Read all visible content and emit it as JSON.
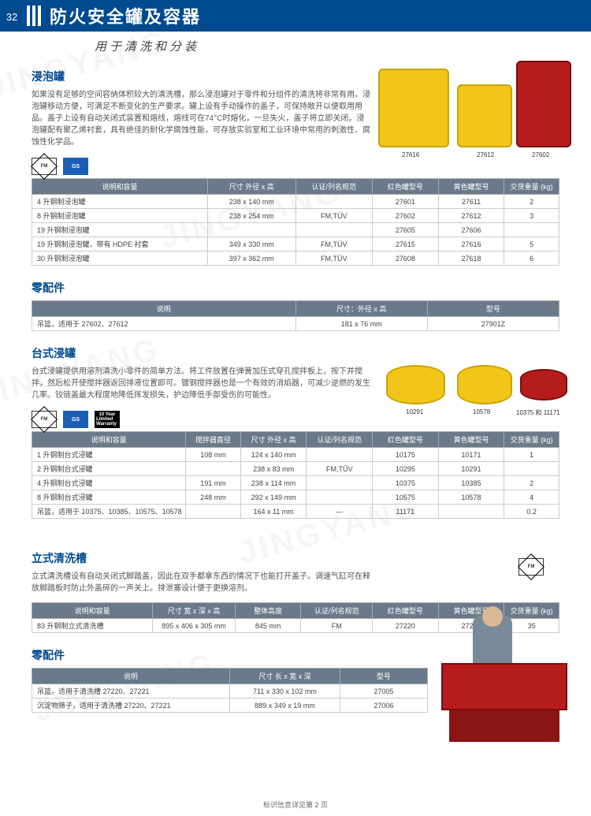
{
  "page_number": "32",
  "header_title": "防火安全罐及容器",
  "subtitle": "用于清洗和分装",
  "footer_note": "标识信息详见第 2 页",
  "watermark_text": "JINGYANG",
  "colors": {
    "header_bg": "#004a8f",
    "th_bg": "#6a7a8a",
    "yellow_tank": "#f2c618",
    "red_tank": "#b71c1c"
  },
  "section1": {
    "title": "浸泡罐",
    "desc": "如果没有足够的空间容纳体积较大的清洗槽，那么浸泡罐对于零件和分组件的清洗将非常有用。浸泡罐移动方便，可满足不断变化的生产要求。罐上设有手动操作的盖子，可保持敞开以便取用用品。盖子上设有自动关闭式装置和熔线，熔线可在74°C时熔化，一旦失火，盖子将立即关闭。浸泡罐配有聚乙烯衬套，具有绝佳的耐化学腐蚀性能，可存放实验室和工业环境中常用的刺激性、腐蚀性化学品。",
    "labels": {
      "l1": "27616",
      "l2": "27612",
      "l3": "27602"
    },
    "table": {
      "headers": [
        "说明和容量",
        "尺寸\n外径 x 高",
        "认证/列名规范",
        "红色罐型号",
        "黄色罐型号",
        "交货重量\n(kg)"
      ],
      "rows": [
        [
          "4 升钢制浸泡罐",
          "238 x 140 mm",
          "",
          "27601",
          "27611",
          "2"
        ],
        [
          "8 升钢制浸泡罐",
          "238 x 254 mm",
          "FM,TÜV",
          "27602",
          "27612",
          "3"
        ],
        [
          "19 升钢制浸泡罐",
          "",
          "",
          "27605",
          "27606",
          ""
        ],
        [
          "19 升钢制浸泡罐，带有 HDPE 衬套",
          "349 x 330 mm",
          "FM,TÜV",
          "27615",
          "27616",
          "5"
        ],
        [
          "30 升钢制浸泡罐",
          "397 x 362 mm",
          "FM,TÜV",
          "27608",
          "27618",
          "6"
        ]
      ]
    }
  },
  "section1_acc": {
    "title": "零配件",
    "headers": [
      "说明",
      "尺寸：外径 x 高",
      "型号"
    ],
    "row": [
      "吊篮，适用于 27602、27612",
      "181 x 76 mm",
      "27901Z"
    ]
  },
  "section2": {
    "title": "台式浸罐",
    "desc": "台式浸罐提供用溶剂清洗小零件的简单方法。将工件放置在弹簧加压式穿孔搅拌板上，按下并搅拌，然后松开使搅拌器返回排液位置即可。镀钢搅拌器也是一个有效的消焰器，可减少逆燃的发生几率。铰链盖最大程度地降低挥发损失，护边降低手部受伤的可能性。",
    "labels": {
      "l1": "10291",
      "l2": "10578",
      "l3": "10375 和 11171"
    },
    "table": {
      "headers": [
        "说明和容量",
        "搅拌器直径",
        "尺寸\n外径 x 高",
        "认证/列名规范",
        "红色罐型号",
        "黄色罐型号",
        "交货重量\n(kg)"
      ],
      "rows": [
        [
          "1 升钢制台式浸罐",
          "108 mm",
          "124 x 140 mm",
          "",
          "10175",
          "10171",
          "1"
        ],
        [
          "2 升钢制台式浸罐",
          "",
          "238 x 83 mm",
          "FM,TÜV",
          "10295",
          "10291",
          ""
        ],
        [
          "4 升钢制台式浸罐",
          "191 mm",
          "238 x 114 mm",
          "",
          "10375",
          "10385",
          "2"
        ],
        [
          "8 升钢制台式浸罐",
          "248 mm",
          "292 x 149 mm",
          "",
          "10575",
          "10578",
          "4"
        ],
        [
          "吊篮，适用于 10375、10385、10575、10578",
          "",
          "164 x 11 mm",
          "—",
          "11171",
          "",
          "0.2"
        ]
      ]
    }
  },
  "section3": {
    "title": "立式清洗槽",
    "desc": "立式清洗槽设有自动关闭式脚踏盖，因此在双手都拿东西的情况下也能打开盖子。调速气缸可在释放脚踏板时防止外盖碎的一声关上。排泄塞设计便于更换溶剂。",
    "table": {
      "headers": [
        "说明和容量",
        "尺寸\n宽 x 深 x 高",
        "整体高度",
        "认证/列名规范",
        "红色罐型号",
        "黄色罐型号",
        "交货重量\n(kg)"
      ],
      "row": [
        "83 升钢制立式清洗槽",
        "895 x 406 x 305 mm",
        "845 mm",
        "FM",
        "27220",
        "27221",
        "35"
      ]
    }
  },
  "section3_acc": {
    "title": "零配件",
    "headers": [
      "说明",
      "尺寸 长 x 宽 x 深",
      "型号"
    ],
    "rows": [
      [
        "吊篮，适用于清洗槽 27220、27221",
        "711 x 330 x 102 mm",
        "27005"
      ],
      [
        "沉淀物筛子，适用于清洗槽 27220、27221",
        "889 x 349 x 19 mm",
        "27006"
      ]
    ]
  },
  "badges": {
    "fm": "FM",
    "gs": "GS",
    "warranty1": "10 Year",
    "warranty2": "Limited Warranty"
  }
}
